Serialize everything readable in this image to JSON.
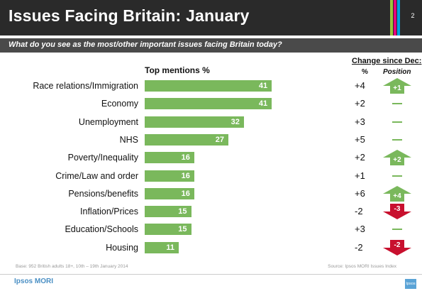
{
  "header": {
    "title": "Issues Facing Britain: January",
    "page_number": "2",
    "stripe_colors": [
      "#9bc53d",
      "#e5007d",
      "#00a1e4"
    ]
  },
  "question": "What do you see as the most/other important issues facing Britain today?",
  "columns": {
    "change_title": "Change since Dec:",
    "pct": "%",
    "position": "Position"
  },
  "chart_data": {
    "type": "bar",
    "orientation": "horizontal",
    "title": "Top mentions %",
    "categories": [
      "Race relations/Immigration",
      "Economy",
      "Unemployment",
      "NHS",
      "Poverty/Inequality",
      "Crime/Law and order",
      "Pensions/benefits",
      "Inflation/Prices",
      "Education/Schools",
      "Housing"
    ],
    "values": [
      41,
      41,
      32,
      27,
      16,
      16,
      16,
      15,
      15,
      11
    ],
    "xlim": [
      0,
      100
    ],
    "grid": false,
    "bar_color": "#7ab85c",
    "change_since_dec_pct": [
      "+4",
      "+2",
      "+3",
      "+5",
      "+2",
      "+1",
      "+6",
      "-2",
      "+3",
      "-2"
    ],
    "position_change": [
      {
        "direction": "up",
        "label": "+1"
      },
      {
        "direction": "none",
        "label": ""
      },
      {
        "direction": "none",
        "label": ""
      },
      {
        "direction": "none",
        "label": ""
      },
      {
        "direction": "up",
        "label": "+2"
      },
      {
        "direction": "none",
        "label": ""
      },
      {
        "direction": "up",
        "label": "+4"
      },
      {
        "direction": "down",
        "label": "-3"
      },
      {
        "direction": "none",
        "label": ""
      },
      {
        "direction": "down",
        "label": "-2"
      }
    ],
    "up_color": "#7ab85c",
    "down_color": "#c8102e"
  },
  "footer": {
    "base": "Base: 952 British adults 18+, 10th – 19th January 2014",
    "source": "Source: Ipsos MORI   Issues Index",
    "brand": "Ipsos MORI",
    "logo_text": "Ipsos"
  }
}
